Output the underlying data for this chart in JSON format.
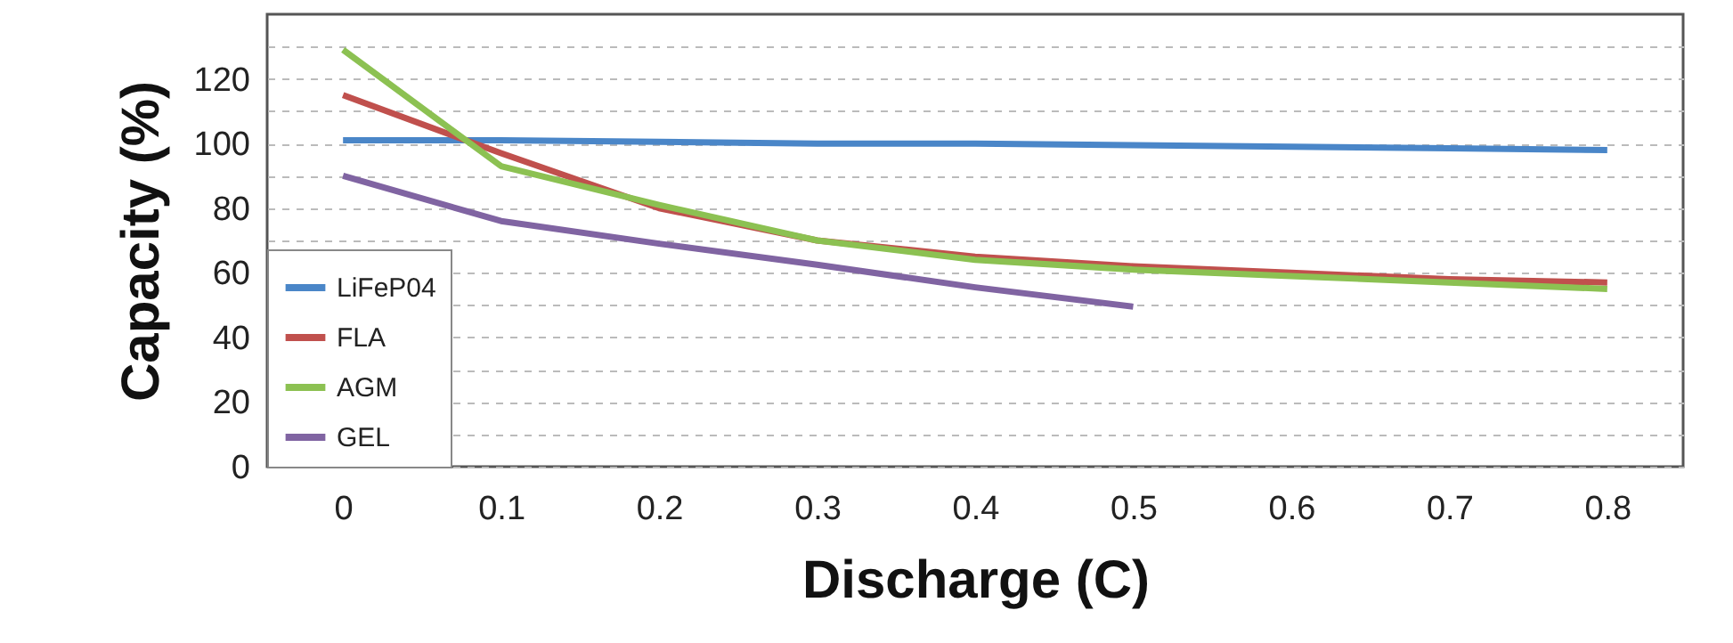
{
  "chart_data": {
    "type": "line",
    "xlabel": "Discharge (C)",
    "ylabel": "Capacity (%)",
    "categories": [
      "0",
      "0.1",
      "0.2",
      "0.3",
      "0.4",
      "0.5",
      "0.6",
      "0.7",
      "0.8"
    ],
    "series": [
      {
        "name": "LiFeP04",
        "color": "#4a86c8",
        "values": [
          101,
          101,
          100.5,
          100,
          100,
          99.5,
          99,
          98.5,
          98
        ]
      },
      {
        "name": "FLA",
        "color": "#c0504d",
        "values": [
          115,
          97,
          80,
          70,
          65,
          62,
          60,
          58,
          57
        ]
      },
      {
        "name": "AGM",
        "color": "#8cc152",
        "values": [
          129,
          93,
          81,
          70,
          64,
          61,
          59,
          57,
          55
        ]
      },
      {
        "name": "GEL",
        "color": "#8064a2",
        "values": [
          90,
          76,
          69,
          62.5,
          55.5,
          49.5,
          null,
          null,
          null
        ]
      }
    ],
    "ylim": [
      0,
      140
    ],
    "yticks": [
      0,
      {
        "value": 10,
        "label": null
      },
      20,
      {
        "value": 30,
        "label": null
      },
      40,
      {
        "value": 50,
        "label": null
      },
      60,
      {
        "value": 70,
        "label": null
      },
      80,
      {
        "value": 90,
        "label": null
      },
      100,
      {
        "value": 110,
        "label": null
      },
      120,
      {
        "value": 130,
        "label": null
      }
    ],
    "grid": "y",
    "legend": "bottom left",
    "line_style": "solid",
    "marker": "none"
  }
}
